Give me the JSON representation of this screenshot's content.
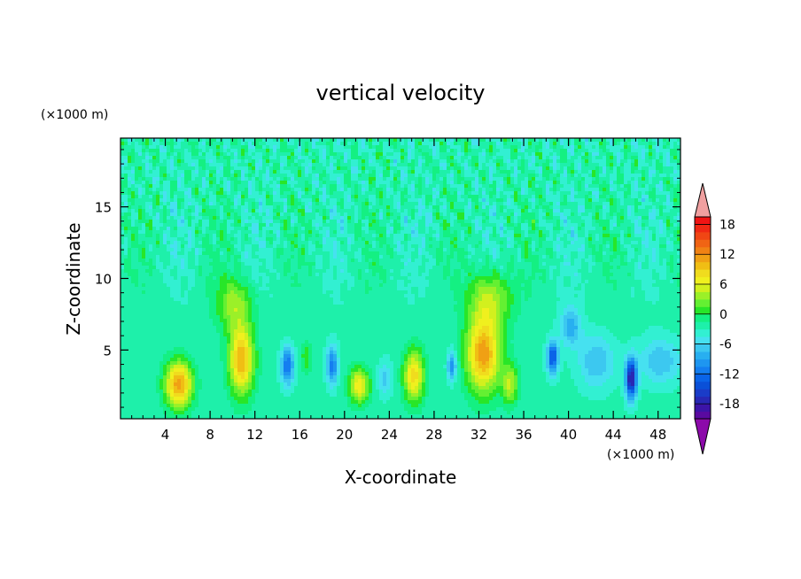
{
  "chart_data": {
    "type": "heatmap",
    "title": "vertical velocity",
    "xlabel": "X-coordinate",
    "ylabel": "Z-coordinate",
    "x_unit_label": "(×1000 m)",
    "y_unit_label": "(×1000 m)",
    "xlim": [
      0,
      50
    ],
    "ylim": [
      0.2,
      19.8
    ],
    "x_ticks": [
      4,
      8,
      12,
      16,
      20,
      24,
      28,
      32,
      36,
      40,
      44,
      48
    ],
    "y_ticks": [
      5,
      10,
      15
    ],
    "colorbar": {
      "levels": [
        -21,
        -19.5,
        -18,
        -16.5,
        -15,
        -13.5,
        -12,
        -10.5,
        -9,
        -7.5,
        -6,
        -4.5,
        -3,
        -1.5,
        0,
        1.5,
        3,
        4.5,
        6,
        7.5,
        9,
        10.5,
        12,
        13.5,
        15,
        16.5,
        18,
        19.5
      ],
      "tick_labels": [
        "18",
        "12",
        "6",
        "0",
        "-6",
        "-12",
        "-18"
      ],
      "tick_values": [
        18,
        12,
        6,
        0,
        -6,
        -12,
        -18
      ],
      "colors": [
        "#5a0aa0",
        "#3c14a8",
        "#2828b4",
        "#1a3cc8",
        "#0a50d8",
        "#0a64e8",
        "#147ef0",
        "#1e96f0",
        "#28aff0",
        "#3cc8f0",
        "#46e1f0",
        "#32f0d2",
        "#1ef0aa",
        "#14f082",
        "#28e628",
        "#64f032",
        "#9bf028",
        "#d2f01e",
        "#f0f01e",
        "#f0dc1e",
        "#f0be14",
        "#f0a014",
        "#f08214",
        "#f06414",
        "#f04614",
        "#f02814",
        "#f01414"
      ],
      "under_color": "#8c0aaa",
      "over_color": "#f0a0a0"
    },
    "features": [
      {
        "x": 5.2,
        "z": 2.6,
        "sx": 1.2,
        "sz": 1.6,
        "amp": 14
      },
      {
        "x": 10.8,
        "z": 4.3,
        "sx": 1.1,
        "sz": 2.4,
        "amp": 13
      },
      {
        "x": 10.2,
        "z": 8.2,
        "sx": 1.6,
        "sz": 1.8,
        "amp": 6
      },
      {
        "x": 14.9,
        "z": 3.9,
        "sx": 0.55,
        "sz": 1.3,
        "amp": -10
      },
      {
        "x": 16.6,
        "z": 4.5,
        "sx": 0.45,
        "sz": 1.0,
        "amp": 4
      },
      {
        "x": 18.9,
        "z": 3.9,
        "sx": 0.5,
        "sz": 1.3,
        "amp": -9
      },
      {
        "x": 21.3,
        "z": 2.5,
        "sx": 0.9,
        "sz": 1.2,
        "amp": 10
      },
      {
        "x": 23.6,
        "z": 3.0,
        "sx": 0.6,
        "sz": 1.2,
        "amp": -4
      },
      {
        "x": 26.2,
        "z": 3.2,
        "sx": 0.9,
        "sz": 1.8,
        "amp": 11
      },
      {
        "x": 29.6,
        "z": 3.9,
        "sx": 0.4,
        "sz": 1.0,
        "amp": -8
      },
      {
        "x": 32.4,
        "z": 4.7,
        "sx": 1.5,
        "sz": 2.6,
        "amp": 14
      },
      {
        "x": 33.0,
        "z": 8.6,
        "sx": 1.9,
        "sz": 2.0,
        "amp": 7
      },
      {
        "x": 34.8,
        "z": 2.6,
        "sx": 0.7,
        "sz": 1.4,
        "amp": 7
      },
      {
        "x": 38.6,
        "z": 4.5,
        "sx": 0.5,
        "sz": 1.1,
        "amp": -12
      },
      {
        "x": 40.2,
        "z": 6.6,
        "sx": 0.9,
        "sz": 1.3,
        "amp": -6
      },
      {
        "x": 42.5,
        "z": 4.2,
        "sx": 1.6,
        "sz": 1.8,
        "amp": -5
      },
      {
        "x": 45.6,
        "z": 3.0,
        "sx": 0.5,
        "sz": 1.4,
        "amp": -16
      },
      {
        "x": 48.2,
        "z": 4.2,
        "sx": 1.8,
        "sz": 1.5,
        "amp": -5
      }
    ]
  }
}
